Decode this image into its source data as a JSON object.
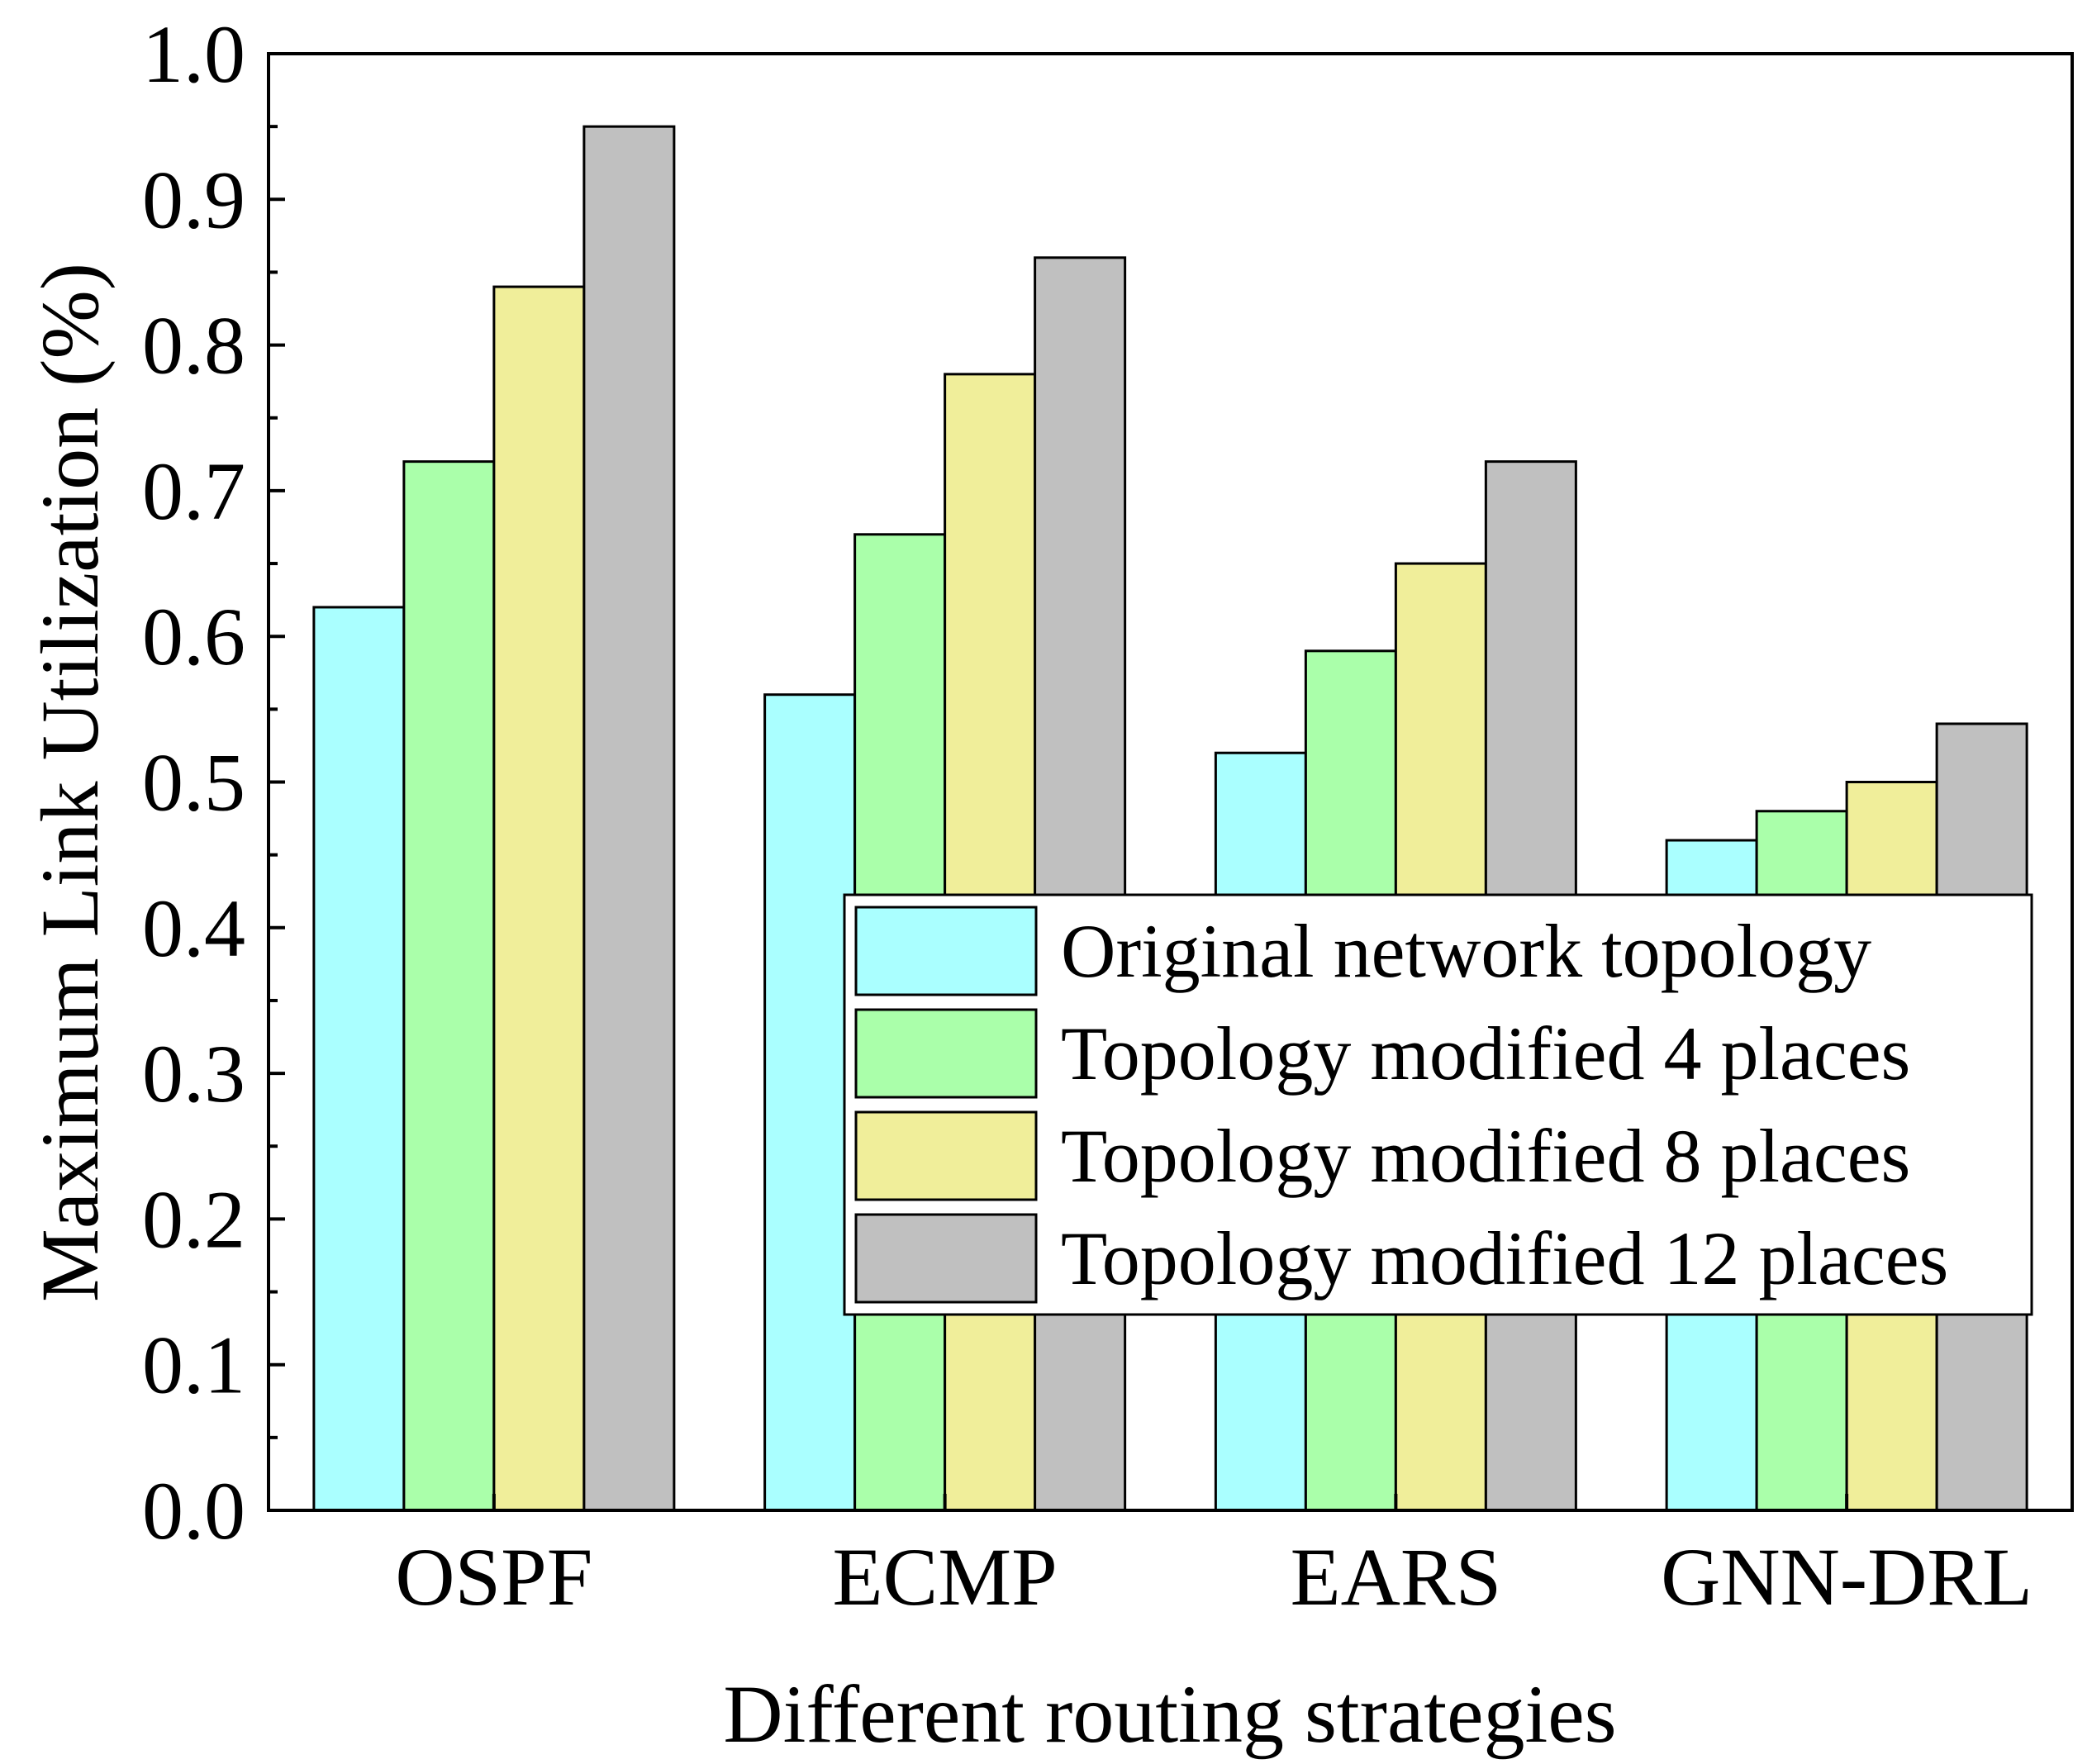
{
  "chart_data": {
    "type": "bar",
    "categories": [
      "OSPF",
      "ECMP",
      "EARS",
      "GNN-DRL"
    ],
    "series": [
      {
        "name": "Original network topology",
        "color": "#AAFFFF",
        "values": [
          0.62,
          0.56,
          0.52,
          0.46
        ]
      },
      {
        "name": "Topology modified 4 places",
        "color": "#AAFFAA",
        "values": [
          0.72,
          0.67,
          0.59,
          0.48
        ]
      },
      {
        "name": "Topology modified 8 places",
        "color": "#F0EE9A",
        "values": [
          0.84,
          0.78,
          0.65,
          0.5
        ]
      },
      {
        "name": "Topology modified 12 places",
        "color": "#C0C0C0",
        "values": [
          0.95,
          0.86,
          0.72,
          0.54
        ]
      }
    ],
    "xlabel": "Different routing strategies",
    "ylabel": "Maximum Link Utilization (%)",
    "ylim": [
      0,
      1.0
    ],
    "yticks": [
      "0.0",
      "0.1",
      "0.2",
      "0.3",
      "0.4",
      "0.5",
      "0.6",
      "0.7",
      "0.8",
      "0.9",
      "1.0"
    ],
    "grid": false,
    "legend_position": "lower-right"
  }
}
